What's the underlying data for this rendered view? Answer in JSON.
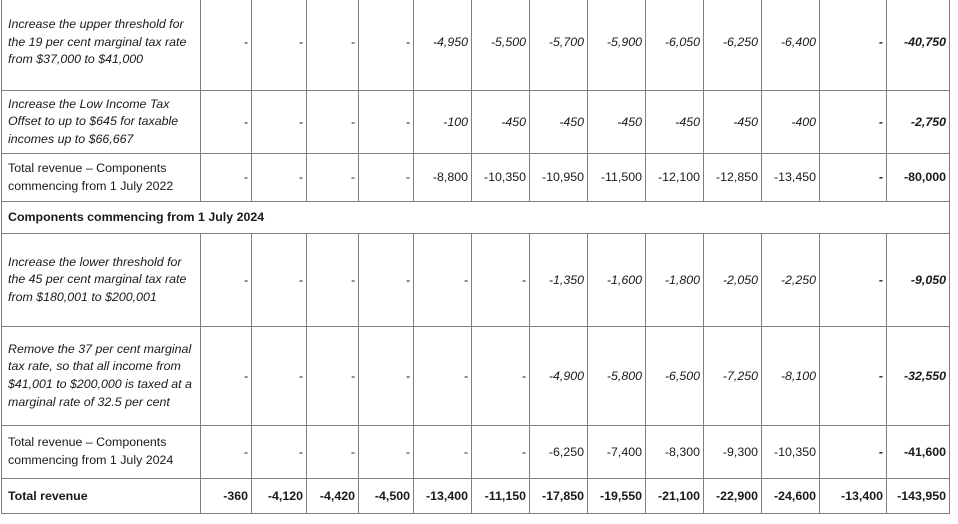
{
  "rows": [
    {
      "kind": "item",
      "style": "italic",
      "label": "Increase the upper threshold for the 19 per cent marginal tax rate from $37,000 to $41,000",
      "values": [
        "-",
        "-",
        "-",
        "-",
        "-4,950",
        "-5,500",
        "-5,700",
        "-5,900",
        "-6,050",
        "-6,250",
        "-6,400",
        "-"
      ],
      "total": "-40,750"
    },
    {
      "kind": "item",
      "style": "italic",
      "label": "Increase the Low Income Tax Offset to up to $645 for taxable incomes up to $66,667",
      "values": [
        "-",
        "-",
        "-",
        "-",
        "-100",
        "-450",
        "-450",
        "-450",
        "-450",
        "-450",
        "-400",
        "-"
      ],
      "total": "-2,750"
    },
    {
      "kind": "item",
      "style": "normal",
      "label": "Total revenue – Components commencing from 1 July 2022",
      "values": [
        "-",
        "-",
        "-",
        "-",
        "-8,800",
        "-10,350",
        "-10,950",
        "-11,500",
        "-12,100",
        "-12,850",
        "-13,450",
        "-"
      ],
      "total": "-80,000"
    },
    {
      "kind": "section",
      "label": "Components commencing from 1 July 2024"
    },
    {
      "kind": "item",
      "style": "italic",
      "label": "Increase the lower threshold for the 45 per cent marginal tax rate from $180,001 to $200,001",
      "values": [
        "-",
        "-",
        "-",
        "-",
        "-",
        "-",
        "-1,350",
        "-1,600",
        "-1,800",
        "-2,050",
        "-2,250",
        "-"
      ],
      "total": "-9,050"
    },
    {
      "kind": "item",
      "style": "italic",
      "label": "Remove the 37 per cent marginal tax rate, so that all income from $41,001 to $200,000 is taxed at a marginal rate of 32.5 per cent",
      "values": [
        "-",
        "-",
        "-",
        "-",
        "-",
        "-",
        "-4,900",
        "-5,800",
        "-6,500",
        "-7,250",
        "-8,100",
        "-"
      ],
      "total": "-32,550"
    },
    {
      "kind": "item",
      "style": "normal",
      "label": "Total revenue – Components commencing from 1 July 2024",
      "values": [
        "-",
        "-",
        "-",
        "-",
        "-",
        "-",
        "-6,250",
        "-7,400",
        "-8,300",
        "-9,300",
        "-10,350",
        "-"
      ],
      "total": "-41,600"
    },
    {
      "kind": "grand",
      "label": "Total revenue",
      "values": [
        "-360",
        "-4,120",
        "-4,420",
        "-4,500",
        "-13,400",
        "-11,150",
        "-17,850",
        "-19,550",
        "-21,100",
        "-22,900",
        "-24,600",
        "-13,400"
      ],
      "total": "-143,950"
    }
  ]
}
